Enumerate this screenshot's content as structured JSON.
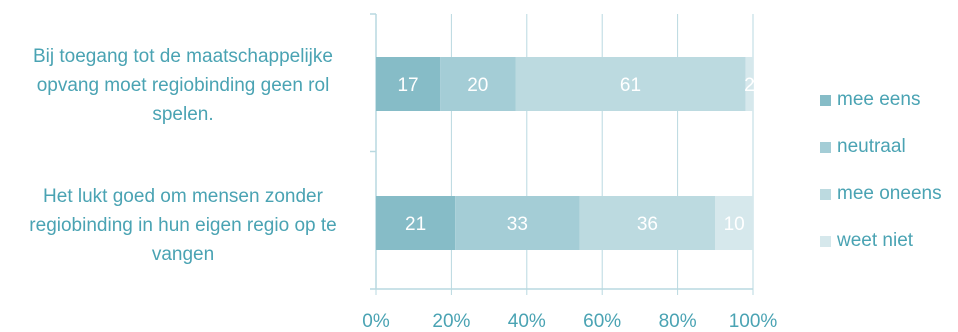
{
  "chart_data": {
    "type": "bar",
    "orientation": "horizontal",
    "stacked": true,
    "categories": [
      "Bij toegang tot de maatschappelijke opvang moet regiobinding geen rol spelen.",
      "Het lukt goed om mensen zonder regiobinding in hun eigen regio op te vangen"
    ],
    "category_lines": [
      [
        "Bij toegang tot de maatschappelijke",
        "opvang moet regiobinding geen rol",
        "spelen."
      ],
      [
        "Het lukt goed om mensen zonder",
        "regiobinding in hun eigen regio op te",
        "vangen"
      ]
    ],
    "series": [
      {
        "name": "mee eens",
        "values": [
          17,
          21
        ],
        "color": "#86bcc7"
      },
      {
        "name": "neutraal",
        "values": [
          20,
          33
        ],
        "color": "#a4cdd6"
      },
      {
        "name": "mee oneens",
        "values": [
          61,
          36
        ],
        "color": "#bcdae0"
      },
      {
        "name": "weet niet",
        "values": [
          2,
          10
        ],
        "color": "#d6e8ec"
      }
    ],
    "x_ticks": [
      "0%",
      "20%",
      "40%",
      "60%",
      "80%",
      "100%"
    ],
    "xlim": [
      0,
      100
    ],
    "grid": true,
    "legend_position": "right",
    "label_color": "#4aa3b3",
    "data_label_color": "#ffffff"
  }
}
